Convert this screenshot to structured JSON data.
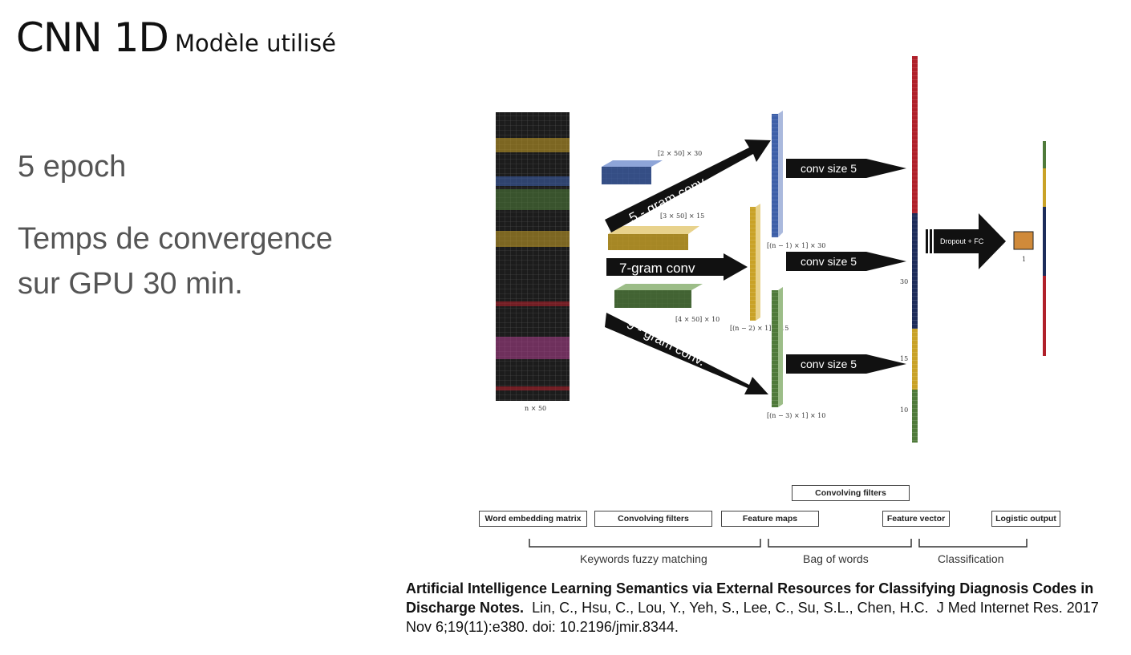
{
  "slide": {
    "title_main": "CNN 1D",
    "title_sub": "Modèle utilisé",
    "bullet_epoch": "5 epoch",
    "bullet_time_line1": "Temps de convergence",
    "bullet_time_line2": "sur GPU 30 min."
  },
  "diagram": {
    "matrix_label": "n × 50",
    "filter_label_1": "[2 × 50] × 30",
    "filter_label_2": "[3 × 50] × 15",
    "filter_label_3": "[4 × 50] × 10",
    "arrow_5gram": "5 - gram conv.",
    "arrow_7gram": "7-gram conv",
    "arrow_9gram": "9 - gram conv.",
    "fmap_label_1": "[(n − 1) × 1] × 30",
    "fmap_label_2": "[(n − 2) × 1] × 15",
    "fmap_label_3": "[(n − 3) × 1] × 10",
    "conv_label_1": "conv size 5",
    "conv_label_2": "conv size 5",
    "conv_label_3": "conv size 5",
    "vec_num_30": "30",
    "vec_num_15": "15",
    "vec_num_10": "10",
    "dropout_label": "Dropout + FC",
    "output_label": "1"
  },
  "legend": {
    "convolving_filters_top": "Convolving filters",
    "word_embedding": "Word embedding matrix",
    "convolving_filters": "Convolving filters",
    "feature_maps": "Feature maps",
    "feature_vector": "Feature vector",
    "logistic_output": "Logistic output",
    "group_keywords": "Keywords fuzzy matching",
    "group_bag": "Bag of words",
    "group_classification": "Classification"
  },
  "citation": {
    "title": "Artificial Intelligence Learning Semantics via External Resources for Classifying Diagnosis Codes in Discharge Notes.",
    "authors": "Lin, C., Hsu, C., Lou, Y., Yeh, S., Lee, C., Su, S.L., Chen, H.C.",
    "journal": "J Med Internet Res. 2017 Nov 6;19(11):e380. doi: 10.2196/jmir.8344."
  },
  "colors": {
    "matrix": "#1a1a1a",
    "gold": "#c9a227",
    "blue": "#3d5fa8",
    "green": "#4f7a3a",
    "red": "#b0202a",
    "magenta": "#b0408f",
    "output": "#d08a3a"
  }
}
